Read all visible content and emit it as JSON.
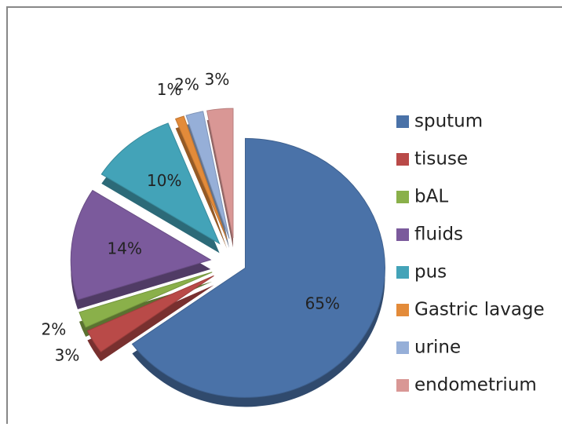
{
  "chart_data": {
    "type": "pie",
    "categories": [
      "sputum",
      "tisuse",
      "bAL",
      "fluids",
      "pus",
      "Gastric lavage",
      "urine",
      "endometrium"
    ],
    "values": [
      65,
      3,
      2,
      14,
      10,
      1,
      2,
      3
    ],
    "value_labels": [
      "65%",
      "3%",
      "2%",
      "14%",
      "10%",
      "1%",
      "2%",
      "3%"
    ],
    "colors": [
      "#4a72a8",
      "#b94a48",
      "#8ab04a",
      "#7b5a9c",
      "#43a3b8",
      "#e38b3a",
      "#96afd8",
      "#d99795"
    ],
    "legend": "right"
  }
}
